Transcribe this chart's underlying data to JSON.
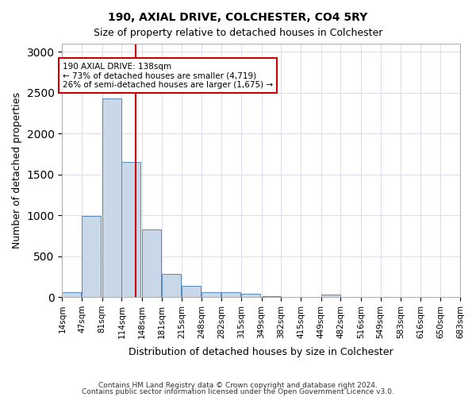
{
  "title1": "190, AXIAL DRIVE, COLCHESTER, CO4 5RY",
  "title2": "Size of property relative to detached houses in Colchester",
  "xlabel": "Distribution of detached houses by size in Colchester",
  "ylabel": "Number of detached properties",
  "footer1": "Contains HM Land Registry data © Crown copyright and database right 2024.",
  "footer2": "Contains public sector information licensed under the Open Government Licence v3.0.",
  "property_label": "190 AXIAL DRIVE: 138sqm",
  "annotation_line1": "← 73% of detached houses are smaller (4,719)",
  "annotation_line2": "26% of semi-detached houses are larger (1,675) →",
  "property_size": 138,
  "vline_bin_index": 4,
  "bar_color": "#c8d8e8",
  "bar_edge_color": "#5588bb",
  "vline_color": "#cc0000",
  "annotation_box_color": "#cc0000",
  "bin_edges": [
    14,
    47,
    81,
    114,
    148,
    181,
    215,
    248,
    282,
    315,
    349,
    382,
    415,
    449,
    482,
    516,
    549,
    583,
    616,
    650,
    683
  ],
  "bin_labels": [
    "14sqm",
    "47sqm",
    "81sqm",
    "114sqm",
    "148sqm",
    "181sqm",
    "215sqm",
    "248sqm",
    "282sqm",
    "315sqm",
    "349sqm",
    "382sqm",
    "415sqm",
    "449sqm",
    "482sqm",
    "516sqm",
    "549sqm",
    "583sqm",
    "616sqm",
    "650sqm",
    "683sqm"
  ],
  "counts": [
    60,
    995,
    2430,
    1650,
    830,
    285,
    140,
    55,
    60,
    35,
    10,
    5,
    5,
    30,
    0,
    0,
    0,
    0,
    0,
    0
  ],
  "ylim": [
    0,
    3100
  ],
  "yticks": [
    0,
    500,
    1000,
    1500,
    2000,
    2500,
    3000
  ],
  "figsize": [
    6.0,
    5.0
  ],
  "dpi": 100
}
